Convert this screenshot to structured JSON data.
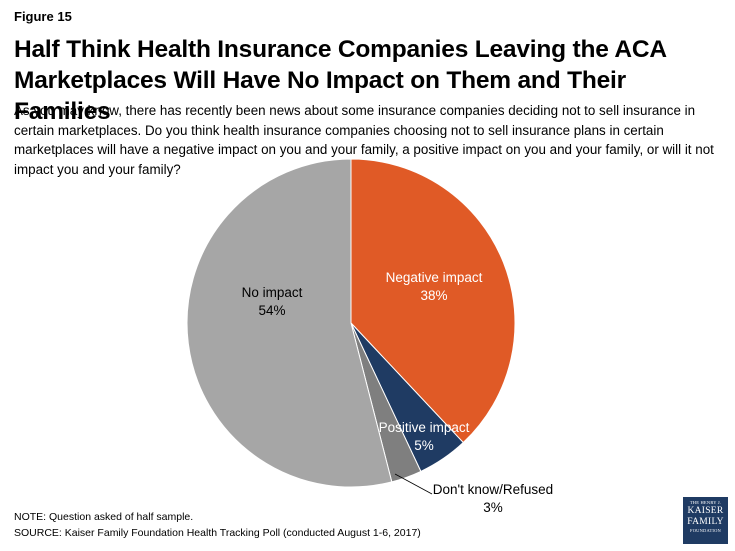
{
  "figure_label": "Figure 15",
  "title": "Half Think Health Insurance Companies Leaving the ACA Marketplaces Will Have No Impact on Them and Their Families",
  "subtitle": "As you may know, there has recently been news about some insurance companies deciding not to sell insurance in certain marketplaces. Do you think health insurance companies choosing not to sell insurance plans in certain marketplaces will have a negative impact on you and your family, a positive impact on you and your family, or will it not impact you and your family?",
  "note": "NOTE: Question asked of half sample.",
  "source": "SOURCE: Kaiser Family Foundation Health Tracking Poll (conducted August 1-6, 2017)",
  "logo": {
    "line1": "THE HENRY J.",
    "line2": "KAISER",
    "line3": "FAMILY",
    "line4": "FOUNDATION"
  },
  "chart_data": {
    "type": "pie",
    "start_angle_deg": 0,
    "direction": "clockwise",
    "slices": [
      {
        "label": "Negative impact",
        "value": 38,
        "value_label": "38%",
        "color": "#e05a26",
        "label_color": "#ffffff"
      },
      {
        "label": "Positive impact",
        "value": 5,
        "value_label": "5%",
        "color": "#1f3b63",
        "label_color": "#ffffff"
      },
      {
        "label": "Don't know/Refused",
        "value": 3,
        "value_label": "3%",
        "color": "#7f7f7f",
        "label_color": "#000000"
      },
      {
        "label": "No impact",
        "value": 54,
        "value_label": "54%",
        "color": "#a6a6a6",
        "label_color": "#000000"
      }
    ]
  }
}
